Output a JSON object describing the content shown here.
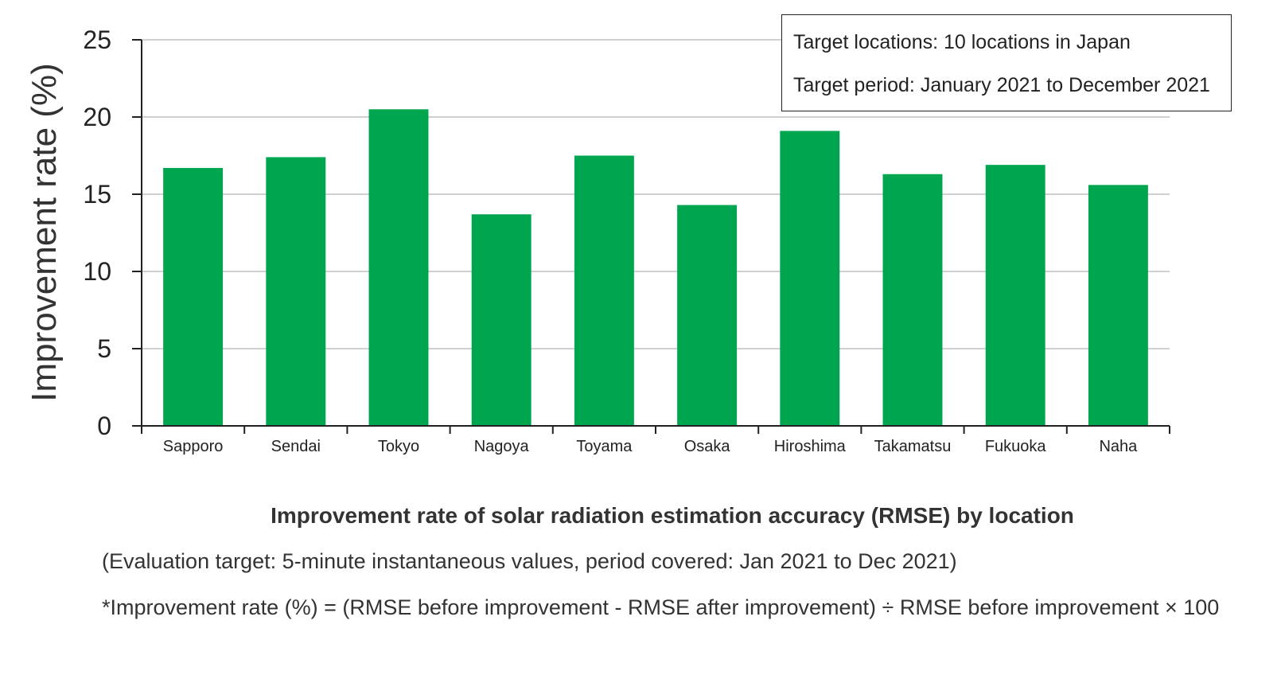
{
  "chart_data": {
    "type": "bar",
    "categories": [
      "Sapporo",
      "Sendai",
      "Tokyo",
      "Nagoya",
      "Toyama",
      "Osaka",
      "Hiroshima",
      "Takamatsu",
      "Fukuoka",
      "Naha"
    ],
    "values": [
      16.7,
      17.4,
      20.5,
      13.7,
      17.5,
      14.3,
      19.1,
      16.3,
      16.9,
      15.6
    ],
    "ylabel": "Improvement rate (%)",
    "xlabel": "",
    "ylim": [
      0,
      25
    ],
    "yticks": [
      0,
      5,
      10,
      15,
      20,
      25
    ],
    "grid": true,
    "bar_color": "#00a64f",
    "grid_color": "#d0d0d0",
    "annotation_box": {
      "lines": [
        "Target locations: 10 locations in Japan",
        "Target period: January 2021 to December 2021"
      ],
      "placement": "top-right"
    }
  },
  "caption": {
    "title": "Improvement rate of solar radiation estimation accuracy (RMSE) by location",
    "note1": "(Evaluation target: 5-minute instantaneous values, period covered: Jan 2021 to Dec 2021)",
    "note2": "*Improvement rate (%) = (RMSE before improvement - RMSE after improvement) ÷ RMSE before improvement × 100"
  }
}
